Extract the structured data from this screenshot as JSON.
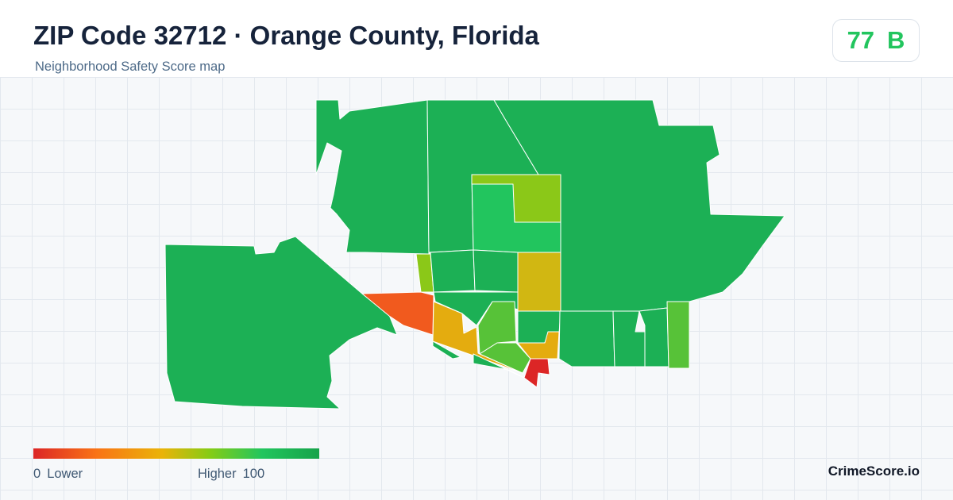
{
  "header": {
    "title": "ZIP Code 32712 · Orange County, Florida",
    "subtitle": "Neighborhood Safety Score map"
  },
  "score": {
    "value": "77",
    "grade": "B",
    "color": "#22c55e"
  },
  "legend": {
    "min_value": "0",
    "min_label": "Lower",
    "max_label": "Higher",
    "max_value": "100",
    "colors": [
      "#dc2626",
      "#f97316",
      "#eab308",
      "#84cc16",
      "#22c55e",
      "#16a34a"
    ]
  },
  "brand": "CrimeScore.io",
  "map": {
    "colors": {
      "high": "#1cb055",
      "good": "#22c55e",
      "fair": "#57c238",
      "moderate": "#8bc818",
      "mid": "#d1b712",
      "low_mid": "#e4ac0f",
      "low": "#f15a1e",
      "lowest": "#dc2626",
      "border": "#ffffff"
    }
  }
}
